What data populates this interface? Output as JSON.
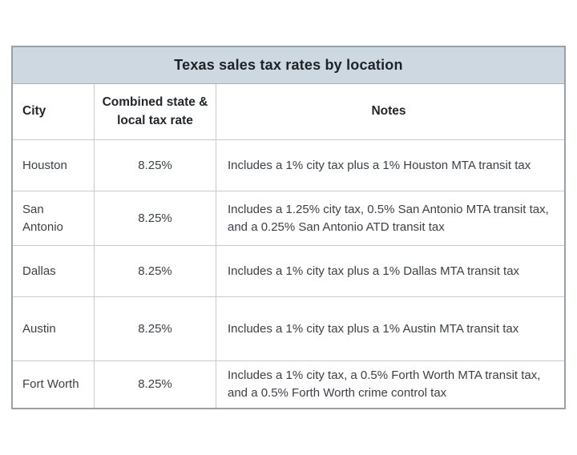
{
  "table": {
    "title": "Texas sales tax rates by location",
    "columns": [
      {
        "label": "City"
      },
      {
        "label": "Combined state & local tax rate"
      },
      {
        "label": "Notes"
      }
    ],
    "rows": [
      {
        "city": "Houston",
        "rate": "8.25%",
        "notes": "Includes a 1% city tax plus a 1% Houston MTA transit tax"
      },
      {
        "city": "San Antonio",
        "rate": "8.25%",
        "notes": "Includes a 1.25% city tax, 0.5% San Antonio MTA transit tax, and a 0.25% San Antonio ATD transit tax"
      },
      {
        "city": "Dallas",
        "rate": "8.25%",
        "notes": "Includes a 1% city tax plus a 1% Dallas MTA transit tax"
      },
      {
        "city": "Austin",
        "rate": "8.25%",
        "notes": "Includes a 1% city tax plus a 1% Austin MTA transit tax"
      },
      {
        "city": "Fort Worth",
        "rate": "8.25%",
        "notes": "Includes a 1% city tax, a 0.5% Forth Worth MTA transit tax, and a 0.5% Forth Worth crime control tax"
      }
    ],
    "colors": {
      "title_band_bg": "#cdd8e0",
      "outer_border": "#9aa1a8",
      "grid_line": "#c6cbd0",
      "title_text": "#1d2227",
      "body_text": "#3c4147"
    }
  }
}
